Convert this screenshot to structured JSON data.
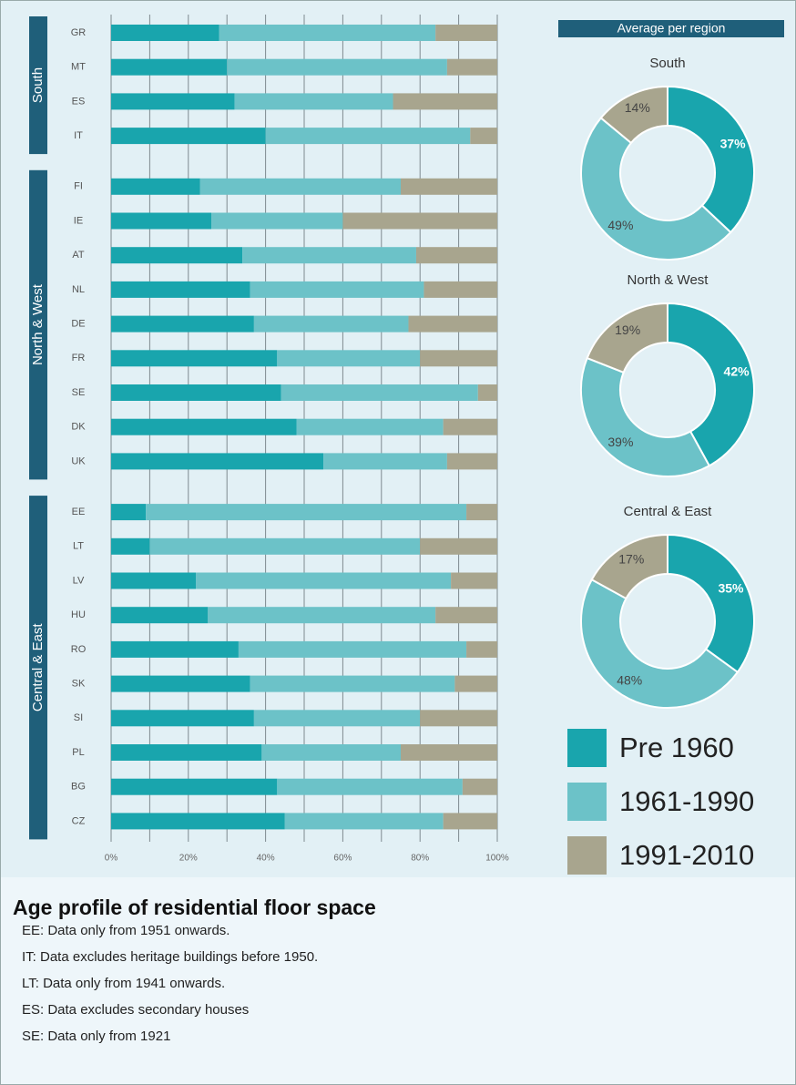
{
  "panel_title": "Average per region",
  "notes": [
    "EE: Data only from 1951 onwards.",
    "IT: Data excludes heritage buildings before 1950.",
    "LT: Data only from 1941 onwards.",
    "ES: Data excludes secondary houses",
    "SE: Data only from 1921"
  ],
  "chart_data": [
    {
      "type": "stacked-bar-horizontal",
      "title": "Age profile of residential floor space",
      "groups": [
        {
          "name": "South",
          "categories": [
            "GR",
            "MT",
            "ES",
            "IT"
          ]
        },
        {
          "name": "North & West",
          "categories": [
            "FI",
            "IE",
            "AT",
            "NL",
            "DE",
            "FR",
            "SE",
            "DK",
            "UK"
          ]
        },
        {
          "name": "Central & East",
          "categories": [
            "EE",
            "LT",
            "LV",
            "HU",
            "RO",
            "SK",
            "SI",
            "PL",
            "BG",
            "CZ"
          ]
        }
      ],
      "series": [
        {
          "name": "Pre 1960",
          "color": "#19a5ad",
          "values": [
            28,
            30,
            32,
            40,
            23,
            26,
            34,
            36,
            37,
            43,
            44,
            48,
            55,
            9,
            10,
            22,
            25,
            33,
            36,
            37,
            39,
            43,
            45
          ]
        },
        {
          "name": "1961-1990",
          "color": "#6cc2c8",
          "values": [
            56,
            57,
            41,
            53,
            52,
            34,
            45,
            45,
            40,
            37,
            51,
            38,
            32,
            83,
            70,
            66,
            59,
            59,
            53,
            43,
            36,
            48,
            41
          ]
        },
        {
          "name": "1991-2010",
          "color": "#a8a58e",
          "values": [
            16,
            13,
            27,
            7,
            25,
            40,
            21,
            19,
            23,
            20,
            5,
            14,
            13,
            8,
            20,
            12,
            16,
            8,
            11,
            20,
            25,
            9,
            14
          ]
        }
      ],
      "xlim": [
        0,
        100
      ],
      "xticks": [
        {
          "value": 0,
          "label": "0%"
        },
        {
          "value": 20,
          "label": "20%"
        },
        {
          "value": 40,
          "label": "40%"
        },
        {
          "value": 60,
          "label": "60%"
        },
        {
          "value": 80,
          "label": "80%"
        },
        {
          "value": 100,
          "label": "100%"
        }
      ],
      "xminorticks": [
        10,
        30,
        50,
        70,
        90
      ],
      "grid": true
    },
    {
      "type": "donut",
      "title": "South",
      "values": [
        37,
        49,
        14
      ],
      "value_labels": [
        "37%",
        "49%",
        "14%"
      ]
    },
    {
      "type": "donut",
      "title": "North & West",
      "values": [
        42,
        39,
        19
      ],
      "value_labels": [
        "42%",
        "39%",
        "19%"
      ]
    },
    {
      "type": "donut",
      "title": "Central & East",
      "values": [
        35,
        48,
        17
      ],
      "value_labels": [
        "35%",
        "48%",
        "17%"
      ]
    }
  ]
}
